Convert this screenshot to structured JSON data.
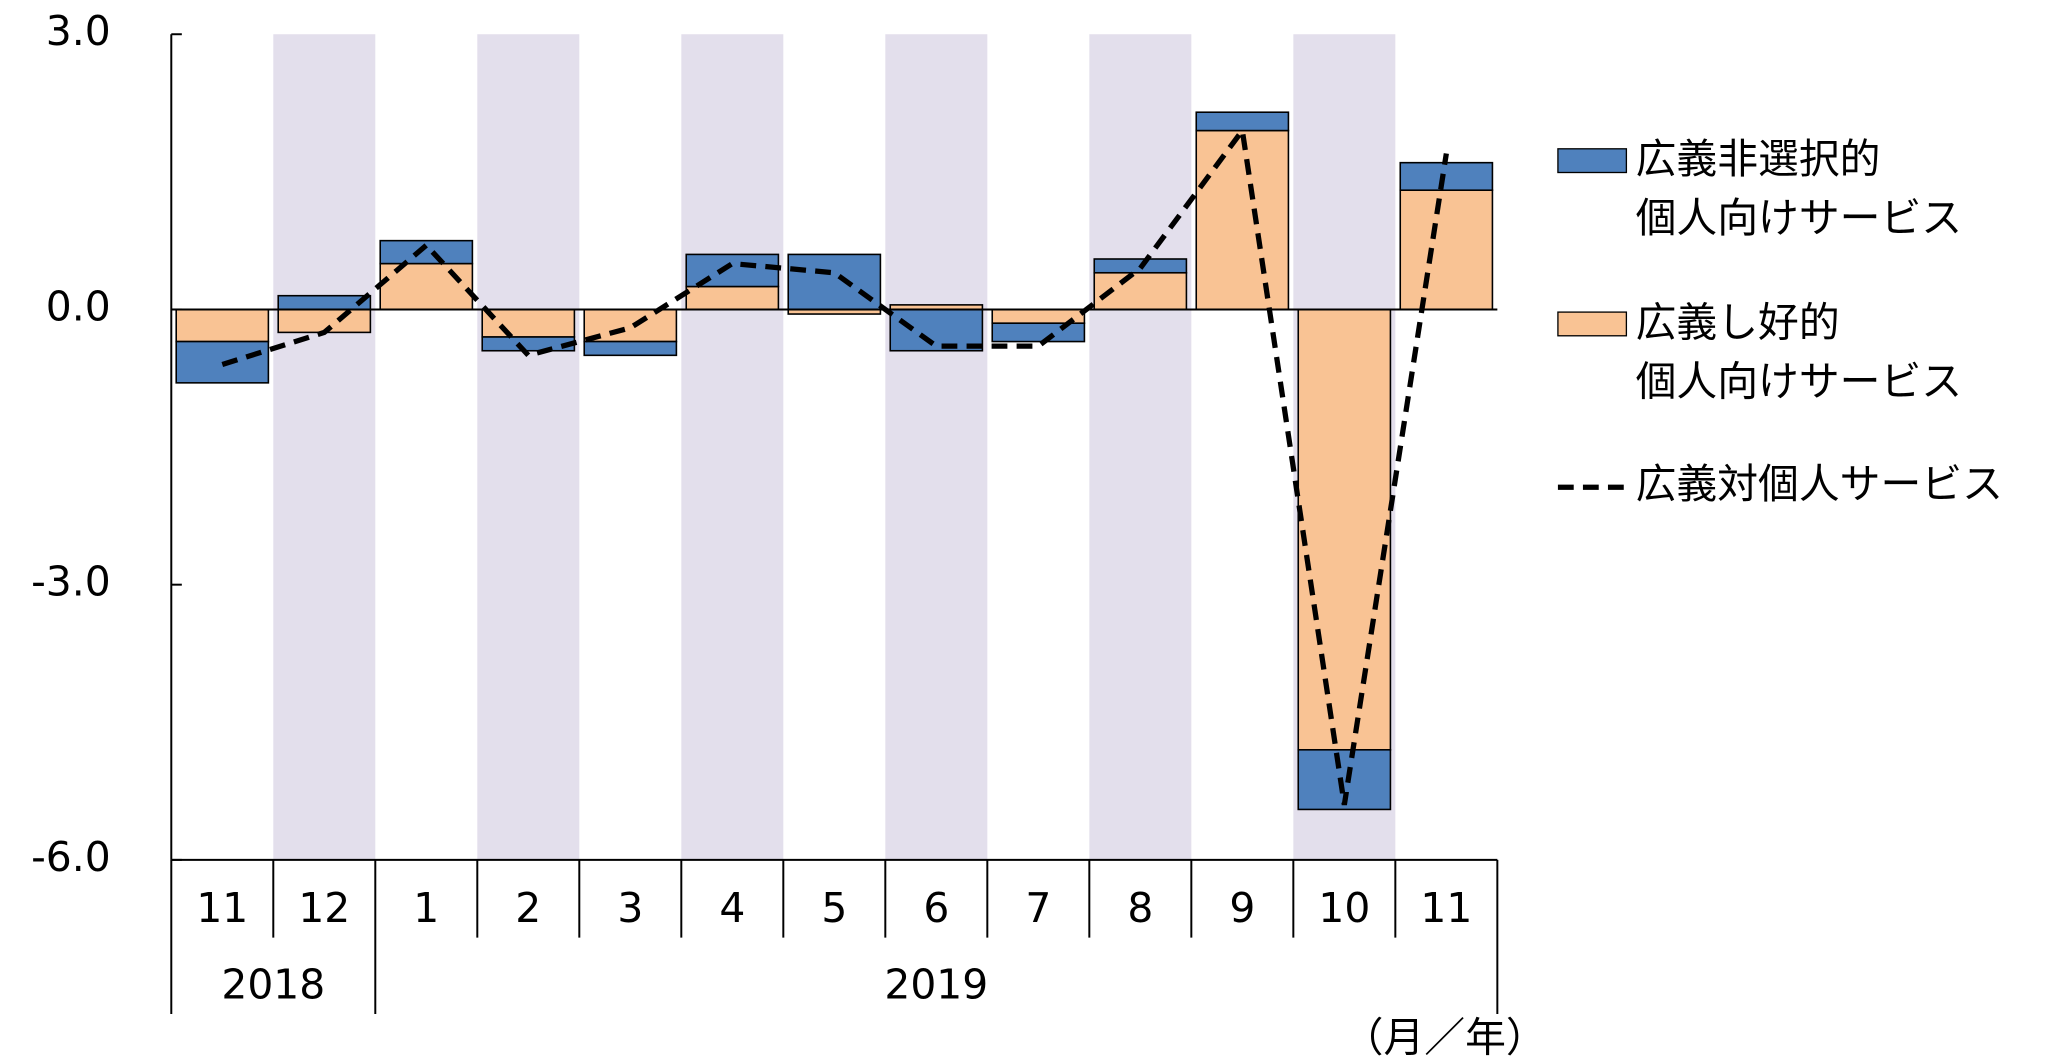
{
  "chart_data": {
    "type": "bar",
    "categories": [
      "11",
      "12",
      "1",
      "2",
      "3",
      "4",
      "5",
      "6",
      "7",
      "8",
      "9",
      "10",
      "11"
    ],
    "years": [
      "2018",
      null,
      "2019",
      null,
      null,
      null,
      null,
      null,
      null,
      null,
      null,
      null,
      null
    ],
    "x_unit": "（月／年）",
    "stacked": true,
    "series": [
      {
        "name": "広義し好的\n個人向けサービス",
        "type": "bar",
        "color": "#f9c394",
        "values": [
          -0.35,
          -0.25,
          0.5,
          -0.3,
          -0.35,
          0.25,
          -0.05,
          0.05,
          -0.15,
          0.4,
          1.95,
          -4.8,
          1.3
        ]
      },
      {
        "name": "広義非選択的\n個人向けサービス",
        "type": "bar",
        "color": "#4f81bd",
        "values": [
          -0.45,
          0.15,
          0.25,
          -0.15,
          -0.15,
          0.35,
          0.6,
          -0.45,
          -0.2,
          0.15,
          0.2,
          -0.65,
          0.3
        ]
      },
      {
        "name": "広義対個人サービス",
        "type": "line",
        "color": "#000000",
        "values": [
          -0.6,
          -0.25,
          0.7,
          -0.5,
          -0.2,
          0.5,
          0.4,
          -0.4,
          -0.4,
          0.45,
          1.95,
          -5.4,
          1.7
        ]
      }
    ],
    "ylim": [
      -6,
      3
    ],
    "yticks": [
      {
        "value": -6,
        "label": "-6.0"
      },
      {
        "value": -3,
        "label": "-3.0"
      },
      {
        "value": 0,
        "label": "0.0"
      },
      {
        "value": 3,
        "label": "3.0"
      }
    ],
    "legend_order": [
      1,
      0,
      2
    ],
    "shade_color": "#e3dfec"
  }
}
